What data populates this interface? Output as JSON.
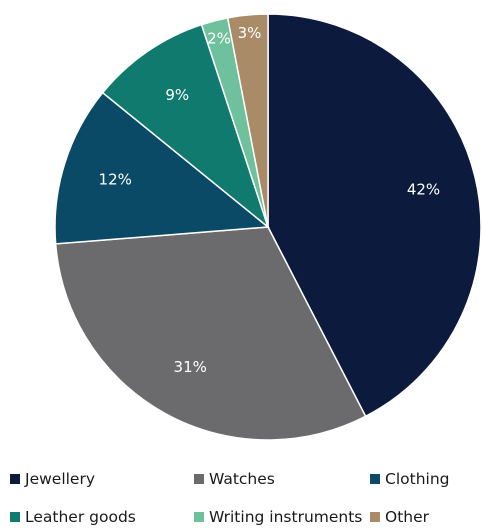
{
  "chart_data": {
    "type": "pie",
    "start_angle_deg": 0,
    "direction": "clockwise",
    "slices": [
      {
        "name": "Jewellery",
        "value": 42,
        "label": "42%",
        "color": "#0b1a3d"
      },
      {
        "name": "Watches",
        "value": 31,
        "label": "31%",
        "color": "#6b6b6d"
      },
      {
        "name": "Clothing",
        "value": 12,
        "label": "12%",
        "color": "#0b4a66"
      },
      {
        "name": "Leather goods",
        "value": 9,
        "label": "9%",
        "color": "#0f7a6d"
      },
      {
        "name": "Writing instruments",
        "value": 2,
        "label": "2%",
        "color": "#6fc09c"
      },
      {
        "name": "Other",
        "value": 3,
        "label": "3%",
        "color": "#a98b68"
      }
    ],
    "legend": {
      "position": "bottom",
      "items": [
        {
          "label": "Jewellery",
          "color": "#0b1a3d"
        },
        {
          "label": "Watches",
          "color": "#6b6b6d"
        },
        {
          "label": "Clothing",
          "color": "#0b4a66"
        },
        {
          "label": "Leather goods",
          "color": "#0f7a6d"
        },
        {
          "label": "Writing instruments",
          "color": "#6fc09c"
        },
        {
          "label": "Other",
          "color": "#a98b68"
        }
      ]
    }
  }
}
